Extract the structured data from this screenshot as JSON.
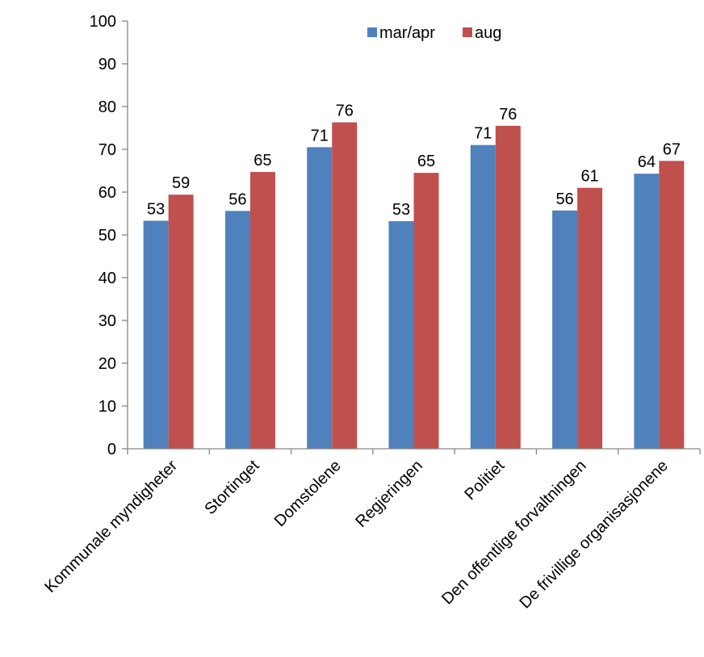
{
  "chart_data": {
    "type": "bar",
    "title": "",
    "xlabel": "",
    "ylabel": "",
    "ylim": [
      0,
      100
    ],
    "yticks": [
      0,
      10,
      20,
      30,
      40,
      50,
      60,
      70,
      80,
      90,
      100
    ],
    "grid": false,
    "legend_position": "top-right",
    "categories": [
      "Kommunale myndigheter",
      "Stortinget",
      "Domstolene",
      "Regjeringen",
      "Politiet",
      "Den offentlige forvaltningen",
      "De frivillige organisasjonene"
    ],
    "series": [
      {
        "name": "mar/apr",
        "color": "#4f81bd",
        "values": [
          53.3,
          55.6,
          70.5,
          53.2,
          71.0,
          55.7,
          64.3
        ],
        "labels": [
          "53",
          "56",
          "71",
          "53",
          "71",
          "56",
          "64"
        ]
      },
      {
        "name": "aug",
        "color": "#c0504d",
        "values": [
          59.4,
          64.7,
          76.3,
          64.5,
          75.5,
          61.0,
          67.3
        ],
        "labels": [
          "59",
          "65",
          "76",
          "65",
          "76",
          "61",
          "67"
        ]
      }
    ]
  }
}
